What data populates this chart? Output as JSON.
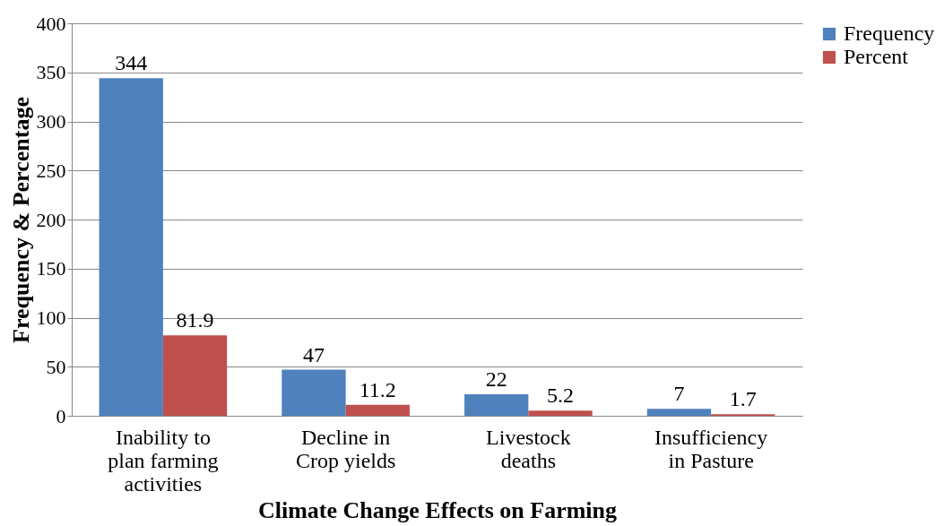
{
  "chart_data": {
    "type": "bar",
    "xlabel": "Climate Change Effects on Farming",
    "ylabel": "Frequency & Percentage",
    "categories": [
      "Inability to plan farming activities",
      "Decline in Crop yields",
      "Livestock deaths",
      "Insufficiency in Pasture"
    ],
    "series": [
      {
        "name": "Frequency",
        "color": "#4f81bd",
        "values": [
          344,
          47,
          22,
          7
        ]
      },
      {
        "name": "Percent",
        "color": "#c0504d",
        "values": [
          81.9,
          11.2,
          5.2,
          1.7
        ]
      }
    ],
    "ylim": [
      0,
      400
    ],
    "yticks": [
      0,
      50,
      100,
      150,
      200,
      250,
      300,
      350,
      400
    ],
    "grid": "y",
    "legend": "right",
    "data_labels": true
  }
}
